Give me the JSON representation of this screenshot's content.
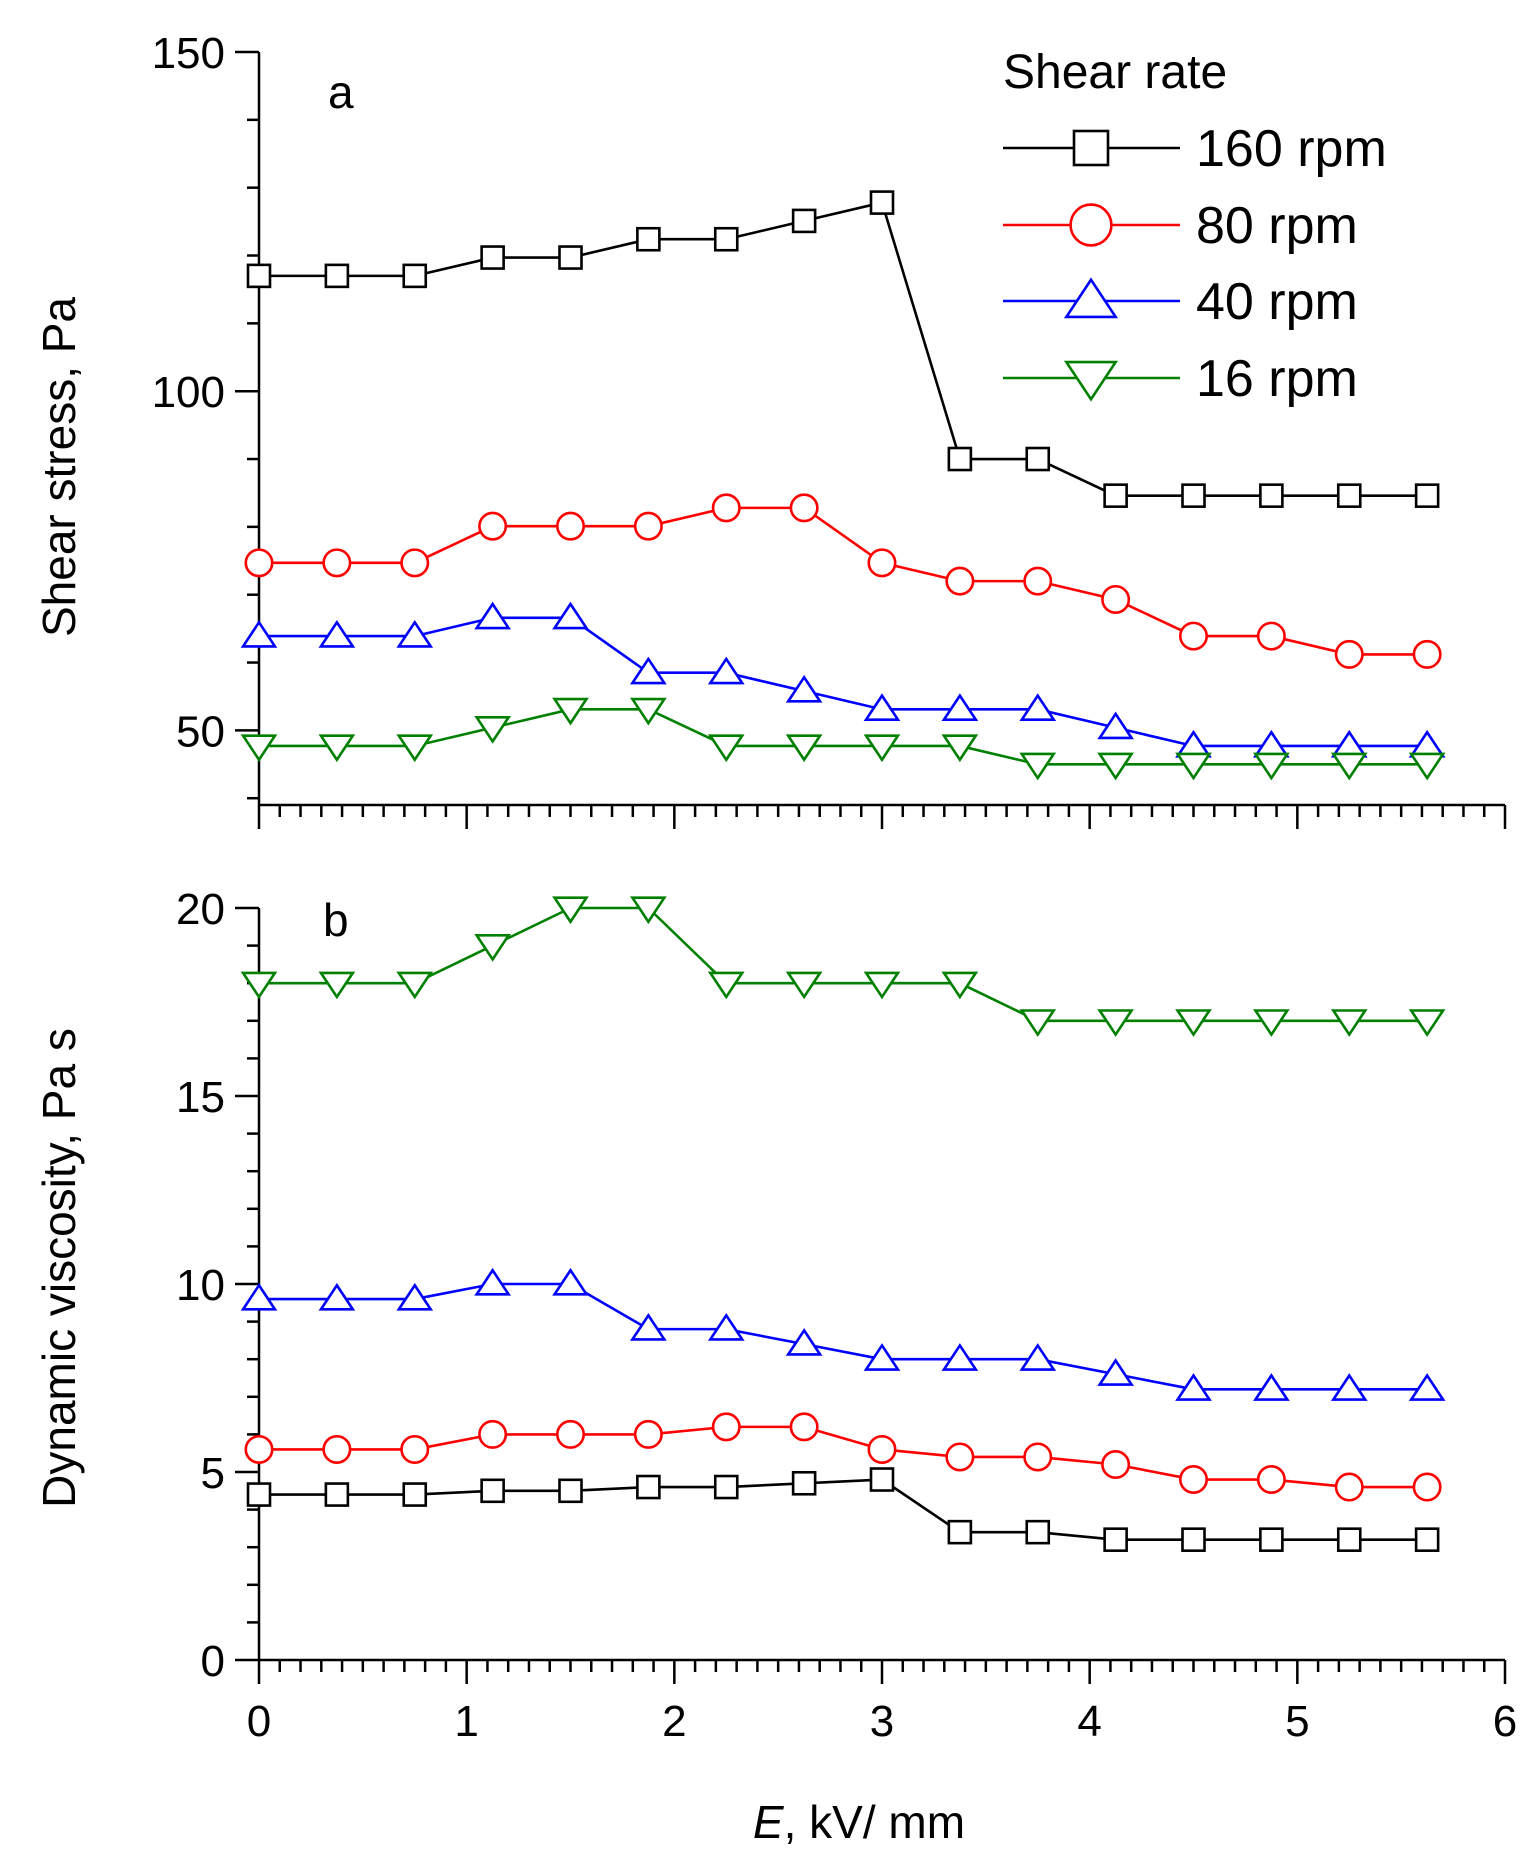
{
  "chart_data": {
    "type": "line",
    "xlabel_italic": "E",
    "xlabel_rest": ", kV/ mm",
    "xlim": [
      0,
      6
    ],
    "xticks": [
      0,
      1,
      2,
      3,
      4,
      5,
      6
    ],
    "x": [
      0,
      0.375,
      0.75,
      1.125,
      1.5,
      1.875,
      2.25,
      2.625,
      3.0,
      3.375,
      3.75,
      4.125,
      4.5,
      4.875,
      5.25,
      5.625
    ],
    "legend": {
      "title": "Shear rate",
      "position": "top-right of panel a"
    },
    "series_styles": [
      {
        "name": "160 rpm",
        "color": "#000000",
        "marker": "square"
      },
      {
        "name": "80 rpm",
        "color": "#ff0000",
        "marker": "circle"
      },
      {
        "name": "40 rpm",
        "color": "#0000ff",
        "marker": "triangle-up"
      },
      {
        "name": "16 rpm",
        "color": "#008000",
        "marker": "triangle-down"
      }
    ],
    "panels": [
      {
        "label": "a",
        "ylabel": "Shear stress, Pa",
        "ylim": [
          39,
          150
        ],
        "yticks": [
          50,
          100,
          150
        ],
        "series": [
          {
            "name": "160 rpm",
            "values": [
              117,
              117,
              117,
              119.7,
              119.7,
              122.4,
              122.4,
              125.1,
              127.8,
              90,
              90,
              84.6,
              84.6,
              84.6,
              84.6,
              84.6
            ]
          },
          {
            "name": "80 rpm",
            "values": [
              74.7,
              74.7,
              74.7,
              80.1,
              80.1,
              80.1,
              82.8,
              82.8,
              74.7,
              72,
              72,
              69.3,
              63.9,
              63.9,
              61.2,
              61.2
            ]
          },
          {
            "name": "40 rpm",
            "values": [
              63.9,
              63.9,
              63.9,
              66.6,
              66.6,
              58.5,
              58.5,
              55.8,
              53.1,
              53.1,
              53.1,
              50.4,
              47.7,
              47.7,
              47.7,
              47.7
            ]
          },
          {
            "name": "16 rpm",
            "values": [
              47.7,
              47.7,
              47.7,
              50.4,
              53.1,
              53.1,
              47.7,
              47.7,
              47.7,
              47.7,
              45,
              45,
              45,
              45,
              45,
              45
            ]
          }
        ]
      },
      {
        "label": "b",
        "ylabel": "Dynamic viscosity, Pa s",
        "ylim": [
          0,
          20
        ],
        "yticks": [
          0,
          5,
          10,
          15,
          20
        ],
        "series": [
          {
            "name": "160 rpm",
            "values": [
              4.4,
              4.4,
              4.4,
              4.5,
              4.5,
              4.6,
              4.6,
              4.7,
              4.8,
              3.4,
              3.4,
              3.2,
              3.2,
              3.2,
              3.2,
              3.2
            ]
          },
          {
            "name": "80 rpm",
            "values": [
              5.6,
              5.6,
              5.6,
              6.0,
              6.0,
              6.0,
              6.2,
              6.2,
              5.6,
              5.4,
              5.4,
              5.2,
              4.8,
              4.8,
              4.6,
              4.6
            ]
          },
          {
            "name": "40 rpm",
            "values": [
              9.6,
              9.6,
              9.6,
              10,
              10,
              8.8,
              8.8,
              8.4,
              8,
              8,
              8,
              7.6,
              7.2,
              7.2,
              7.2,
              7.2
            ]
          },
          {
            "name": "16 rpm",
            "values": [
              18,
              18,
              18,
              19,
              20,
              20,
              18,
              18,
              18,
              18,
              17,
              17,
              17,
              17,
              17,
              17
            ]
          }
        ]
      }
    ]
  }
}
